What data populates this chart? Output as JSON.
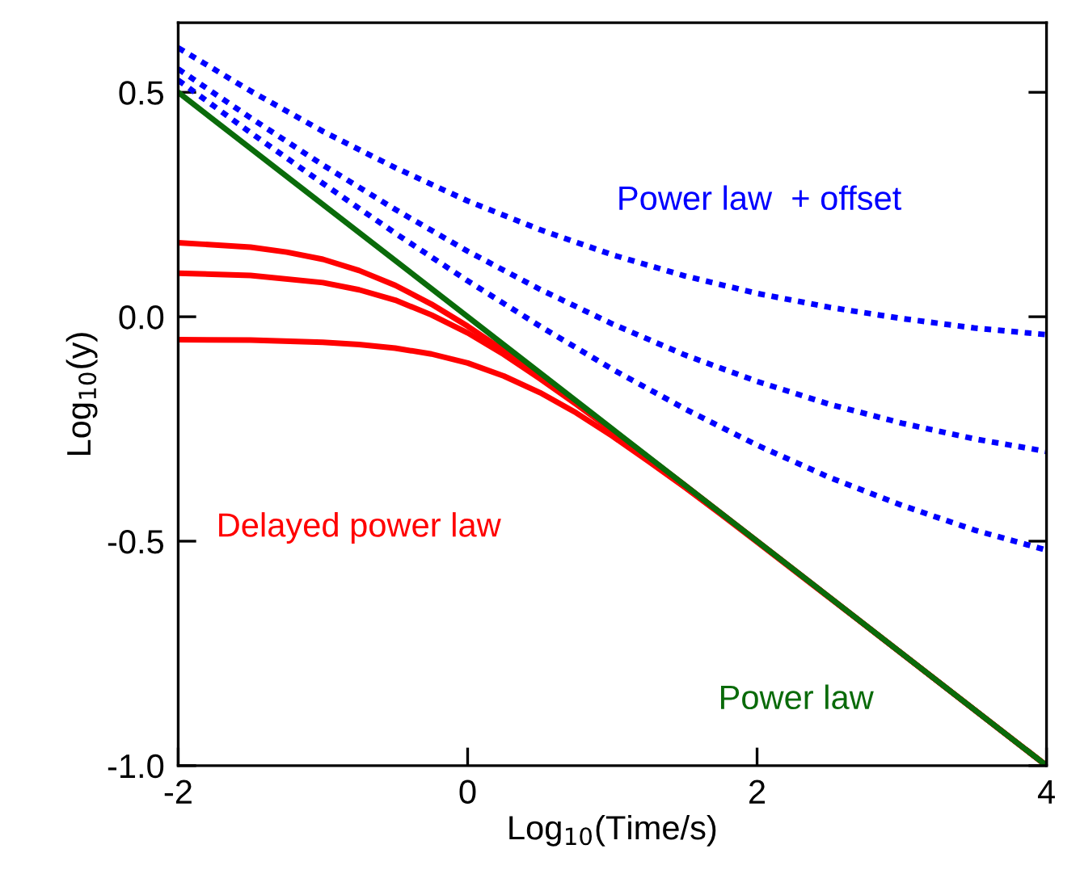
{
  "chart_data": {
    "type": "line",
    "xlabel": "Log$_{10}$(Time/s)",
    "ylabel": "Log$_{10}$(y)",
    "xlim": [
      -2,
      4
    ],
    "ylim": [
      -1.0,
      0.655
    ],
    "xticks": [
      {
        "value": -2,
        "label": "-2"
      },
      0,
      2,
      4
    ],
    "yticks": [
      {
        "value": -1.0,
        "label": "-1.0"
      },
      {
        "value": -0.5,
        "label": "-0.5"
      },
      {
        "value": 0.0,
        "label": "0.0"
      },
      {
        "value": 0.5,
        "label": "0.5"
      }
    ],
    "grid": false,
    "series": [
      {
        "color": "#0000ff",
        "line_style": "dotted",
        "x": [
          -2,
          -1.5,
          -1,
          -0.5,
          0,
          0.5,
          1,
          1.5,
          2,
          2.5,
          3,
          3.5,
          4
        ],
        "values": [
          0.599,
          0.503,
          0.413,
          0.332,
          0.258,
          0.194,
          0.138,
          0.091,
          0.052,
          0.021,
          -0.004,
          -0.025,
          -0.04
        ]
      },
      {
        "color": "#0000ff",
        "line_style": "dotted",
        "x": [
          -2,
          -1.5,
          -1,
          -0.5,
          0,
          0.5,
          1,
          1.5,
          2,
          2.5,
          3,
          3.5,
          4
        ],
        "values": [
          0.552,
          0.443,
          0.338,
          0.239,
          0.146,
          0.061,
          -0.016,
          -0.085,
          -0.144,
          -0.195,
          -0.237,
          -0.272,
          -0.3
        ]
      },
      {
        "color": "#0000ff",
        "line_style": "dotted",
        "x": [
          -2,
          -1.5,
          -1,
          -0.5,
          0,
          0.5,
          1,
          1.5,
          2,
          2.5,
          3,
          3.5,
          4
        ],
        "values": [
          0.527,
          0.41,
          0.297,
          0.186,
          0.08,
          -0.021,
          -0.117,
          -0.205,
          -0.286,
          -0.358,
          -0.42,
          -0.475,
          -0.52
        ]
      },
      {
        "color": "#ff0000",
        "line_style": "solid",
        "x": [
          -2,
          -1.5,
          -1.25,
          -1,
          -0.75,
          -0.5,
          -0.25,
          0,
          0.25,
          0.5,
          0.75,
          1,
          1.25,
          1.5,
          2,
          3,
          4
        ],
        "values": [
          0.165,
          0.155,
          0.144,
          0.128,
          0.103,
          0.07,
          0.028,
          -0.021,
          -0.075,
          -0.132,
          -0.191,
          -0.252,
          -0.314,
          -0.375,
          -0.5,
          -0.75,
          -1.0
        ]
      },
      {
        "color": "#ff0000",
        "line_style": "solid",
        "x": [
          -2,
          -1.5,
          -1,
          -0.75,
          -0.5,
          -0.25,
          0,
          0.25,
          0.5,
          0.75,
          1,
          1.25,
          1.5,
          2,
          3,
          4
        ],
        "values": [
          0.097,
          0.092,
          0.076,
          0.06,
          0.037,
          0.004,
          -0.036,
          -0.084,
          -0.138,
          -0.195,
          -0.254,
          -0.315,
          -0.376,
          -0.5,
          -0.75,
          -1.0
        ]
      },
      {
        "color": "#ff0000",
        "line_style": "solid",
        "x": [
          -2,
          -1.5,
          -1,
          -0.75,
          -0.5,
          -0.25,
          0,
          0.25,
          0.5,
          0.75,
          1,
          1.25,
          1.5,
          1.75,
          2,
          2.5,
          3,
          4
        ],
        "values": [
          -0.051,
          -0.052,
          -0.057,
          -0.062,
          -0.07,
          -0.083,
          -0.103,
          -0.132,
          -0.169,
          -0.214,
          -0.266,
          -0.322,
          -0.38,
          -0.44,
          -0.502,
          -0.626,
          -0.75,
          -1.0
        ]
      },
      {
        "color": "#0a6b0a",
        "line_style": "solid",
        "x": [
          -2,
          4
        ],
        "values": [
          0.5,
          -1.0
        ]
      }
    ],
    "annotations": [
      "Power law  + offset",
      "Delayed power law",
      "Power law"
    ]
  }
}
